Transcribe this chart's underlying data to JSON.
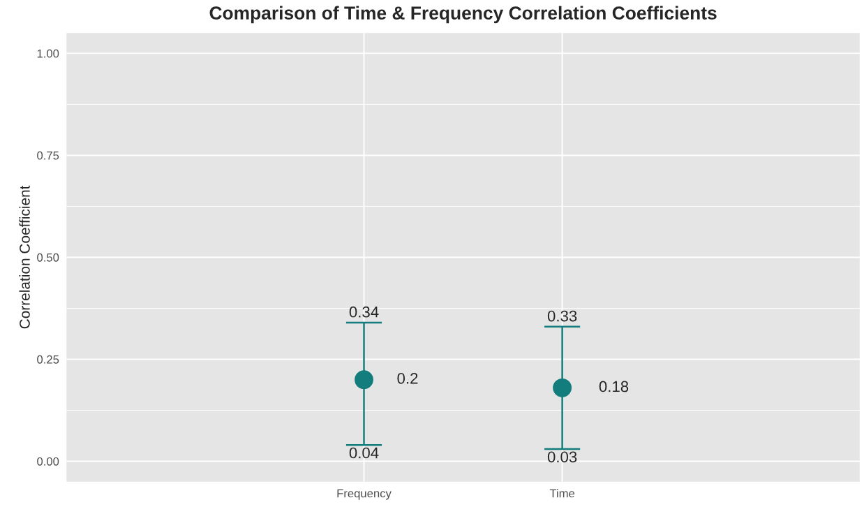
{
  "chart_data": {
    "type": "scatter",
    "title": "Comparison of Time & Frequency Correlation Coefficients",
    "ylabel": "Correlation Coefficient",
    "categories": [
      "Frequency",
      "Time"
    ],
    "series": [
      {
        "color": "#137c7c",
        "values": [
          0.2,
          0.18
        ],
        "errors": [
          [
            0.04,
            0.34
          ],
          [
            0.03,
            0.33
          ]
        ],
        "value_labels": [
          "0.2",
          "0.18"
        ]
      }
    ],
    "annotations": [
      "0.34",
      "0.04",
      "0.33",
      "0.03"
    ],
    "ylim": [
      -0.05,
      1.05
    ],
    "yticks": [
      {
        "value": 0,
        "label": "0.00"
      },
      {
        "value": 0.25,
        "label": "0.25"
      },
      {
        "value": 0.5,
        "label": "0.50"
      },
      {
        "value": 0.75,
        "label": "0.75"
      },
      {
        "value": 1,
        "label": "1.00"
      }
    ],
    "grid": true,
    "marker": "circle",
    "legend": false
  }
}
